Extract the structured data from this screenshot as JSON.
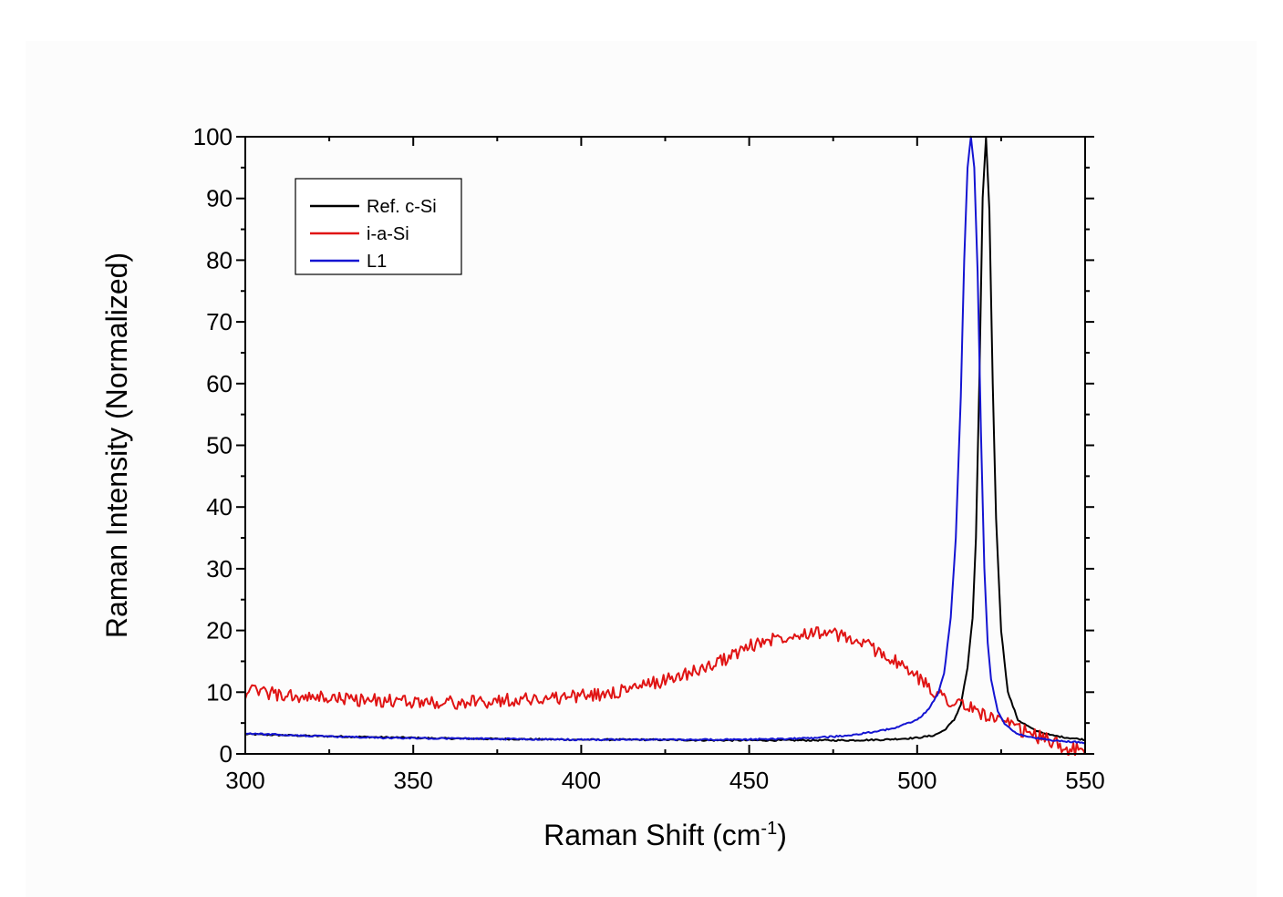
{
  "chart_data": {
    "type": "line",
    "xlabel": "Raman Shift (cm",
    "xlabel_sup": "-1",
    "xlabel_suffix": ")",
    "ylabel": "Raman Intensity (Normalized)",
    "xlim": [
      300,
      550
    ],
    "ylim": [
      0,
      100
    ],
    "xticks": [
      300,
      350,
      400,
      450,
      500,
      550
    ],
    "yticks": [
      0,
      10,
      20,
      30,
      40,
      50,
      60,
      70,
      80,
      90,
      100
    ],
    "grid": false,
    "legend_position": "top-left",
    "series": [
      {
        "name": "Ref. c-Si",
        "color": "#000000",
        "x": [
          300,
          320,
          340,
          360,
          380,
          400,
          420,
          440,
          460,
          480,
          490,
          500,
          505,
          508,
          511,
          513,
          515,
          516.5,
          517.5,
          518.5,
          519.5,
          520.5,
          521.5,
          522.5,
          523.5,
          525,
          527,
          530,
          535,
          540,
          545,
          550
        ],
        "y": [
          3.2,
          2.9,
          2.7,
          2.5,
          2.4,
          2.3,
          2.3,
          2.2,
          2.2,
          2.2,
          2.3,
          2.6,
          3.0,
          3.8,
          5.5,
          8.0,
          14,
          22,
          35,
          60,
          90,
          100,
          88,
          60,
          38,
          20,
          10,
          5.5,
          3.8,
          3.0,
          2.6,
          2.3
        ]
      },
      {
        "name": "i-a-Si",
        "color": "#e01414",
        "x": [
          300,
          305,
          310,
          315,
          320,
          325,
          330,
          335,
          340,
          345,
          350,
          355,
          360,
          365,
          370,
          375,
          380,
          385,
          390,
          395,
          400,
          405,
          410,
          415,
          420,
          425,
          430,
          435,
          440,
          445,
          450,
          455,
          460,
          465,
          470,
          475,
          480,
          485,
          490,
          495,
          500,
          505,
          510,
          515,
          520,
          525,
          530,
          535,
          540,
          545,
          550
        ],
        "y": [
          10,
          10.2,
          9.5,
          9.2,
          9.0,
          9.1,
          8.9,
          8.7,
          8.6,
          8.5,
          8.5,
          8.4,
          8.3,
          8.3,
          8.4,
          8.6,
          8.8,
          8.9,
          9.0,
          9.2,
          9.4,
          9.6,
          10.0,
          10.6,
          11.2,
          12.0,
          12.8,
          13.6,
          14.6,
          16.0,
          17.4,
          18.4,
          19.0,
          19.6,
          19.8,
          19.4,
          18.6,
          17.6,
          16.2,
          14.4,
          12.4,
          10.2,
          8.6,
          7.6,
          6.4,
          5.2,
          4.0,
          3.0,
          2.0,
          0.8,
          0.5
        ]
      },
      {
        "name": "L1",
        "color": "#1414d2",
        "x": [
          300,
          320,
          340,
          360,
          380,
          400,
          420,
          440,
          460,
          470,
          480,
          490,
          495,
          500,
          503,
          506,
          508,
          510,
          511.5,
          513,
          514,
          515,
          516,
          517,
          518,
          519,
          520,
          521,
          522,
          524,
          526,
          530,
          535,
          540,
          545,
          550
        ],
        "y": [
          3.3,
          2.9,
          2.6,
          2.5,
          2.4,
          2.3,
          2.3,
          2.3,
          2.4,
          2.6,
          3.0,
          3.8,
          4.5,
          5.5,
          7.0,
          9.5,
          13,
          22,
          35,
          58,
          80,
          95,
          100,
          95,
          78,
          52,
          30,
          18,
          12,
          7,
          4.8,
          3.2,
          2.6,
          2.2,
          2.0,
          1.8
        ]
      }
    ]
  }
}
